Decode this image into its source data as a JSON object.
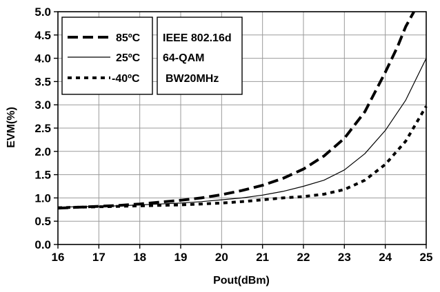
{
  "chart_data": {
    "type": "line",
    "xlabel": "Pout(dBm)",
    "ylabel": "EVM(%)",
    "xlim": [
      16,
      25
    ],
    "ylim": [
      0.0,
      5.0
    ],
    "x_ticks": [
      "16",
      "17",
      "18",
      "19",
      "20",
      "21",
      "22",
      "23",
      "24",
      "25"
    ],
    "y_ticks": [
      "0.0",
      "0.5",
      "1.0",
      "1.5",
      "2.0",
      "2.5",
      "3.0",
      "3.5",
      "4.0",
      "4.5",
      "5.0"
    ],
    "grid": true,
    "legend_position": "top-left",
    "series": [
      {
        "name": "85ºC",
        "style": "long-dash",
        "x": [
          16,
          16.5,
          17,
          17.5,
          18,
          18.5,
          19,
          19.5,
          20,
          20.5,
          21,
          21.5,
          22,
          22.5,
          23,
          23.5,
          24,
          24.3,
          24.5,
          24.7
        ],
        "y": [
          0.78,
          0.8,
          0.82,
          0.84,
          0.87,
          0.91,
          0.95,
          1.0,
          1.07,
          1.16,
          1.27,
          1.42,
          1.62,
          1.9,
          2.28,
          2.85,
          3.7,
          4.25,
          4.68,
          5.0
        ]
      },
      {
        "name": "25ºC",
        "style": "solid-thin",
        "x": [
          16,
          16.5,
          17,
          17.5,
          18,
          18.5,
          19,
          19.5,
          20,
          20.5,
          21,
          21.5,
          22,
          22.5,
          23,
          23.5,
          24,
          24.5,
          25
        ],
        "y": [
          0.8,
          0.81,
          0.82,
          0.83,
          0.85,
          0.87,
          0.89,
          0.92,
          0.96,
          1.0,
          1.06,
          1.14,
          1.25,
          1.38,
          1.6,
          1.95,
          2.45,
          3.1,
          4.0
        ]
      },
      {
        "name": "-40ºC",
        "style": "short-dash",
        "x": [
          16,
          16.5,
          17,
          17.5,
          18,
          18.5,
          19,
          19.5,
          20,
          20.5,
          21,
          21.5,
          22,
          22.5,
          23,
          23.5,
          24,
          24.5,
          25
        ],
        "y": [
          0.79,
          0.8,
          0.81,
          0.82,
          0.83,
          0.84,
          0.85,
          0.87,
          0.89,
          0.92,
          0.96,
          1.0,
          1.03,
          1.08,
          1.18,
          1.38,
          1.72,
          2.22,
          2.97
        ]
      }
    ],
    "annotation": {
      "lines": [
        "IEEE 802.16d",
        "64-QAM",
        "BW20MHz"
      ]
    }
  }
}
